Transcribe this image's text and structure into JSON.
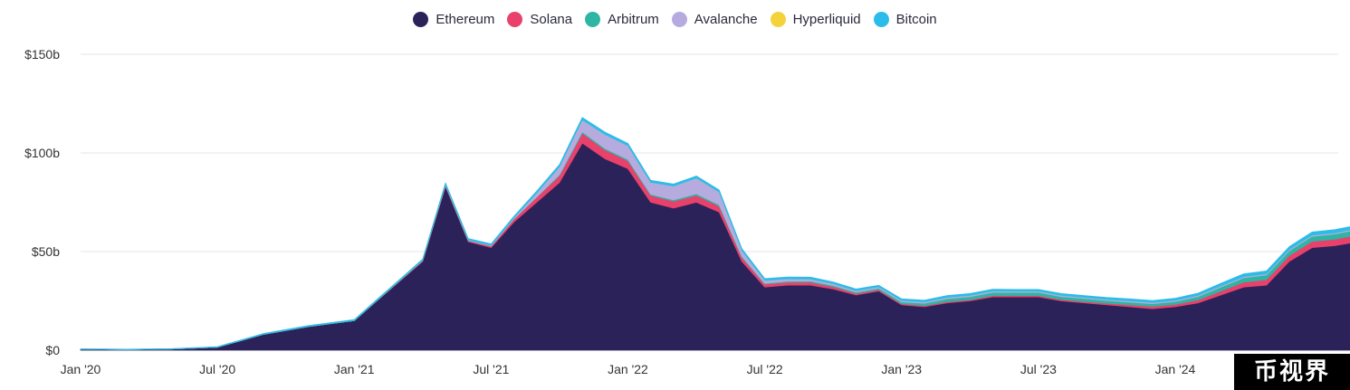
{
  "chart_data": {
    "type": "area",
    "stacked": true,
    "title": "",
    "xlabel": "",
    "ylabel": "",
    "y_unit": "$b",
    "ylim": [
      0,
      150
    ],
    "y_ticks": [
      {
        "value": 0,
        "label": "$0"
      },
      {
        "value": 50,
        "label": "$50b"
      },
      {
        "value": 100,
        "label": "$100b"
      },
      {
        "value": 150,
        "label": "$150b"
      }
    ],
    "xlim": [
      "2020-01",
      "2024-12"
    ],
    "x_ticks": [
      {
        "date": "2020-01",
        "label": "Jan '20"
      },
      {
        "date": "2020-07",
        "label": "Jul '20"
      },
      {
        "date": "2021-01",
        "label": "Jan '21"
      },
      {
        "date": "2021-07",
        "label": "Jul '21"
      },
      {
        "date": "2022-01",
        "label": "Jan '22"
      },
      {
        "date": "2022-07",
        "label": "Jul '22"
      },
      {
        "date": "2023-01",
        "label": "Jan '23"
      },
      {
        "date": "2023-07",
        "label": "Jul '23"
      },
      {
        "date": "2024-01",
        "label": "Jan '24"
      }
    ],
    "grid": true,
    "legend_position": "top-center",
    "x": [
      "2020-01",
      "2020-03",
      "2020-05",
      "2020-07",
      "2020-09",
      "2020-11",
      "2021-01",
      "2021-02",
      "2021-03",
      "2021-04",
      "2021-05",
      "2021-06",
      "2021-07",
      "2021-08",
      "2021-09",
      "2021-10",
      "2021-11",
      "2021-12",
      "2022-01",
      "2022-02",
      "2022-03",
      "2022-04",
      "2022-05",
      "2022-06",
      "2022-07",
      "2022-08",
      "2022-09",
      "2022-10",
      "2022-11",
      "2022-12",
      "2023-01",
      "2023-02",
      "2023-03",
      "2023-04",
      "2023-05",
      "2023-06",
      "2023-07",
      "2023-08",
      "2023-09",
      "2023-10",
      "2023-11",
      "2023-12",
      "2024-01",
      "2024-02",
      "2024-03",
      "2024-04",
      "2024-05",
      "2024-06",
      "2024-07",
      "2024-08",
      "2024-09",
      "2024-10",
      "2024-11",
      "2024-12"
    ],
    "series": [
      {
        "name": "Ethereum",
        "color": "#2b2259",
        "values": [
          0.5,
          0.3,
          0.6,
          1.5,
          8,
          12,
          15,
          25,
          35,
          45,
          83,
          55,
          52,
          65,
          75,
          85,
          105,
          97,
          92,
          75,
          72,
          75,
          70,
          45,
          32,
          33,
          33,
          31,
          28,
          30,
          23,
          22,
          24,
          25,
          27,
          27,
          27,
          25,
          24,
          23,
          22,
          21,
          22,
          24,
          28,
          32,
          33,
          45,
          52,
          53,
          55,
          65,
          60,
          50
        ]
      },
      {
        "name": "Solana",
        "color": "#e8416b",
        "values": [
          0,
          0,
          0,
          0,
          0,
          0,
          0,
          0.2,
          0.3,
          0.4,
          0.7,
          0.6,
          0.8,
          1.5,
          2.5,
          3.5,
          5,
          4.5,
          4,
          3.5,
          3.5,
          3.5,
          3,
          2,
          1.5,
          1.5,
          1.5,
          1.2,
          0.8,
          0.7,
          0.6,
          0.6,
          0.6,
          0.6,
          0.7,
          0.7,
          0.7,
          0.7,
          0.7,
          0.8,
          1.0,
          1.2,
          1.2,
          1.5,
          2,
          2.5,
          2.8,
          3,
          3.2,
          3.3,
          3.5,
          4,
          4,
          4
        ]
      },
      {
        "name": "Arbitrum",
        "color": "#2fb5a3",
        "values": [
          0,
          0,
          0,
          0,
          0,
          0,
          0,
          0,
          0,
          0,
          0,
          0,
          0,
          0,
          0.2,
          0.5,
          0.8,
          0.8,
          0.7,
          0.6,
          0.7,
          0.8,
          0.7,
          0.5,
          0.4,
          0.5,
          0.6,
          0.6,
          0.6,
          0.7,
          0.9,
          1.2,
          1.5,
          1.5,
          1.6,
          1.6,
          1.6,
          1.5,
          1.5,
          1.4,
          1.4,
          1.4,
          1.5,
          1.7,
          2,
          2.2,
          2.3,
          2.4,
          2.5,
          2.6,
          2.7,
          2.8,
          2.8,
          2.8
        ]
      },
      {
        "name": "Avalanche",
        "color": "#b6abdf",
        "values": [
          0,
          0,
          0,
          0,
          0,
          0,
          0,
          0,
          0,
          0.1,
          0.2,
          0.2,
          0.3,
          0.5,
          2,
          4,
          6,
          7,
          7,
          6,
          7,
          8,
          6.5,
          3,
          1.5,
          1.2,
          1,
          0.9,
          0.8,
          0.7,
          0.7,
          0.7,
          0.7,
          0.7,
          0.7,
          0.6,
          0.6,
          0.6,
          0.6,
          0.6,
          0.6,
          0.6,
          0.6,
          0.6,
          0.6,
          0.6,
          0.6,
          0.6,
          0.6,
          0.6,
          0.6,
          0.6,
          0.6,
          0.6
        ]
      },
      {
        "name": "Hyperliquid",
        "color": "#f4d23c",
        "values": [
          0,
          0,
          0,
          0,
          0,
          0,
          0,
          0,
          0,
          0,
          0,
          0,
          0,
          0,
          0,
          0,
          0,
          0,
          0,
          0,
          0,
          0,
          0,
          0,
          0,
          0,
          0,
          0,
          0,
          0,
          0,
          0,
          0,
          0,
          0,
          0,
          0,
          0,
          0,
          0,
          0,
          0,
          0,
          0,
          0,
          0,
          0,
          0,
          0,
          0,
          0,
          0,
          0,
          0.3
        ]
      },
      {
        "name": "Bitcoin",
        "color": "#2bbcea",
        "values": [
          0.2,
          0.2,
          0.2,
          0.3,
          0.4,
          0.5,
          0.5,
          0.6,
          0.6,
          0.7,
          0.9,
          0.8,
          0.8,
          0.9,
          1,
          1.1,
          1.2,
          1.2,
          1.1,
          1,
          1,
          1,
          1,
          0.9,
          0.9,
          0.9,
          0.9,
          0.9,
          0.8,
          0.8,
          0.8,
          0.8,
          0.9,
          0.9,
          0.9,
          0.9,
          0.9,
          0.9,
          0.9,
          0.9,
          1,
          1,
          1,
          1.1,
          1.3,
          1.4,
          1.5,
          1.5,
          1.6,
          1.6,
          1.6,
          1.7,
          1.7,
          1.8
        ]
      }
    ]
  },
  "legend": {
    "items": [
      {
        "label": "Ethereum",
        "color": "#2b2259"
      },
      {
        "label": "Solana",
        "color": "#e8416b"
      },
      {
        "label": "Arbitrum",
        "color": "#2fb5a3"
      },
      {
        "label": "Avalanche",
        "color": "#b6abdf"
      },
      {
        "label": "Hyperliquid",
        "color": "#f4d23c"
      },
      {
        "label": "Bitcoin",
        "color": "#2bbcea"
      }
    ]
  },
  "watermark": {
    "text": "币视界"
  }
}
